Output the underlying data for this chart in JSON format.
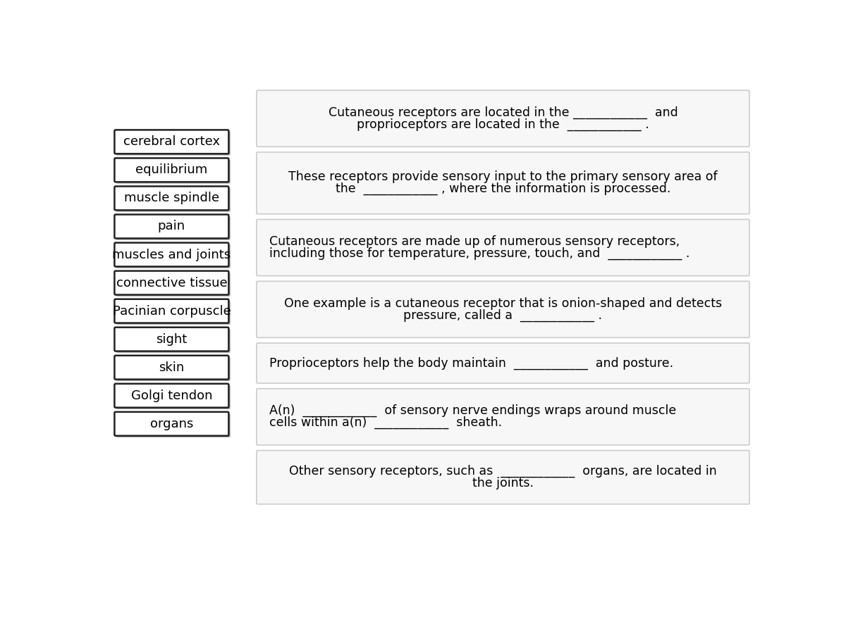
{
  "background_color": "#ffffff",
  "word_boxes": [
    "cerebral cortex",
    "equilibrium",
    "muscle spindle",
    "pain",
    "muscles and joints",
    "connective tissue",
    "Pacinian corpuscle",
    "sight",
    "skin",
    "Golgi tendon",
    "organs"
  ],
  "question_boxes": [
    {
      "lines": [
        "Cutaneous receptors are located in the ____________  and",
        "proprioceptors are located in the  ____________ ."
      ],
      "align": "center"
    },
    {
      "lines": [
        "These receptors provide sensory input to the primary sensory area of",
        "the  ____________ , where the information is processed."
      ],
      "align": "center"
    },
    {
      "lines": [
        "Cutaneous receptors are made up of numerous sensory receptors,",
        "including those for temperature, pressure, touch, and  ____________ ."
      ],
      "align": "left"
    },
    {
      "lines": [
        "One example is a cutaneous receptor that is onion-shaped and detects",
        "pressure, called a  ____________ ."
      ],
      "align": "center"
    },
    {
      "lines": [
        "Proprioceptors help the body maintain  ____________  and posture."
      ],
      "align": "left"
    },
    {
      "lines": [
        "A(n)  ____________  of sensory nerve endings wraps around muscle",
        "cells within a(n)  ____________  sheath."
      ],
      "align": "left"
    },
    {
      "lines": [
        "Other sensory receptors, such as  ____________  organs, are located in",
        "the joints."
      ],
      "align": "center"
    }
  ],
  "word_box_facecolor": "#ffffff",
  "word_box_edgecolor": "#222222",
  "word_box_shadow_color": "#aaaaaa",
  "question_box_facecolor": "#f7f7f7",
  "question_box_edgecolor": "#cccccc",
  "text_fontsize": 12.5,
  "word_fontsize": 13
}
